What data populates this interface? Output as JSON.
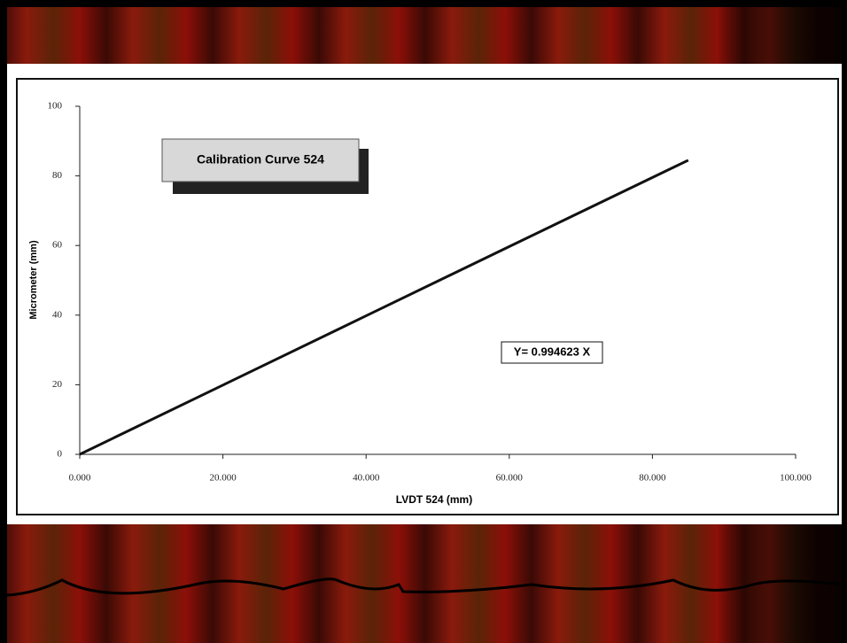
{
  "chart_data": {
    "type": "line",
    "title": "Calibration Curve 524",
    "annotation": "Y= 0.994623 X",
    "x_label": "LVDT 524 (mm)",
    "y_label": "Micrometer (mm)",
    "x": [
      0,
      20,
      40,
      60,
      85
    ],
    "series": [
      {
        "color": "#111111",
        "values": [
          0,
          19.9,
          39.8,
          59.7,
          84.5
        ]
      }
    ],
    "xlim": [
      0,
      100
    ],
    "ylim": [
      0,
      100
    ],
    "xticks": [
      {
        "value": 0,
        "label": "0.000"
      },
      {
        "value": 20,
        "label": "20.000"
      },
      {
        "value": 40,
        "label": "40.000"
      },
      {
        "value": 60,
        "label": "60.000"
      },
      {
        "value": 80,
        "label": "80.000"
      },
      {
        "value": 100,
        "label": "100.000"
      }
    ],
    "yticks": [
      0,
      20,
      40,
      60,
      80,
      100
    ]
  }
}
